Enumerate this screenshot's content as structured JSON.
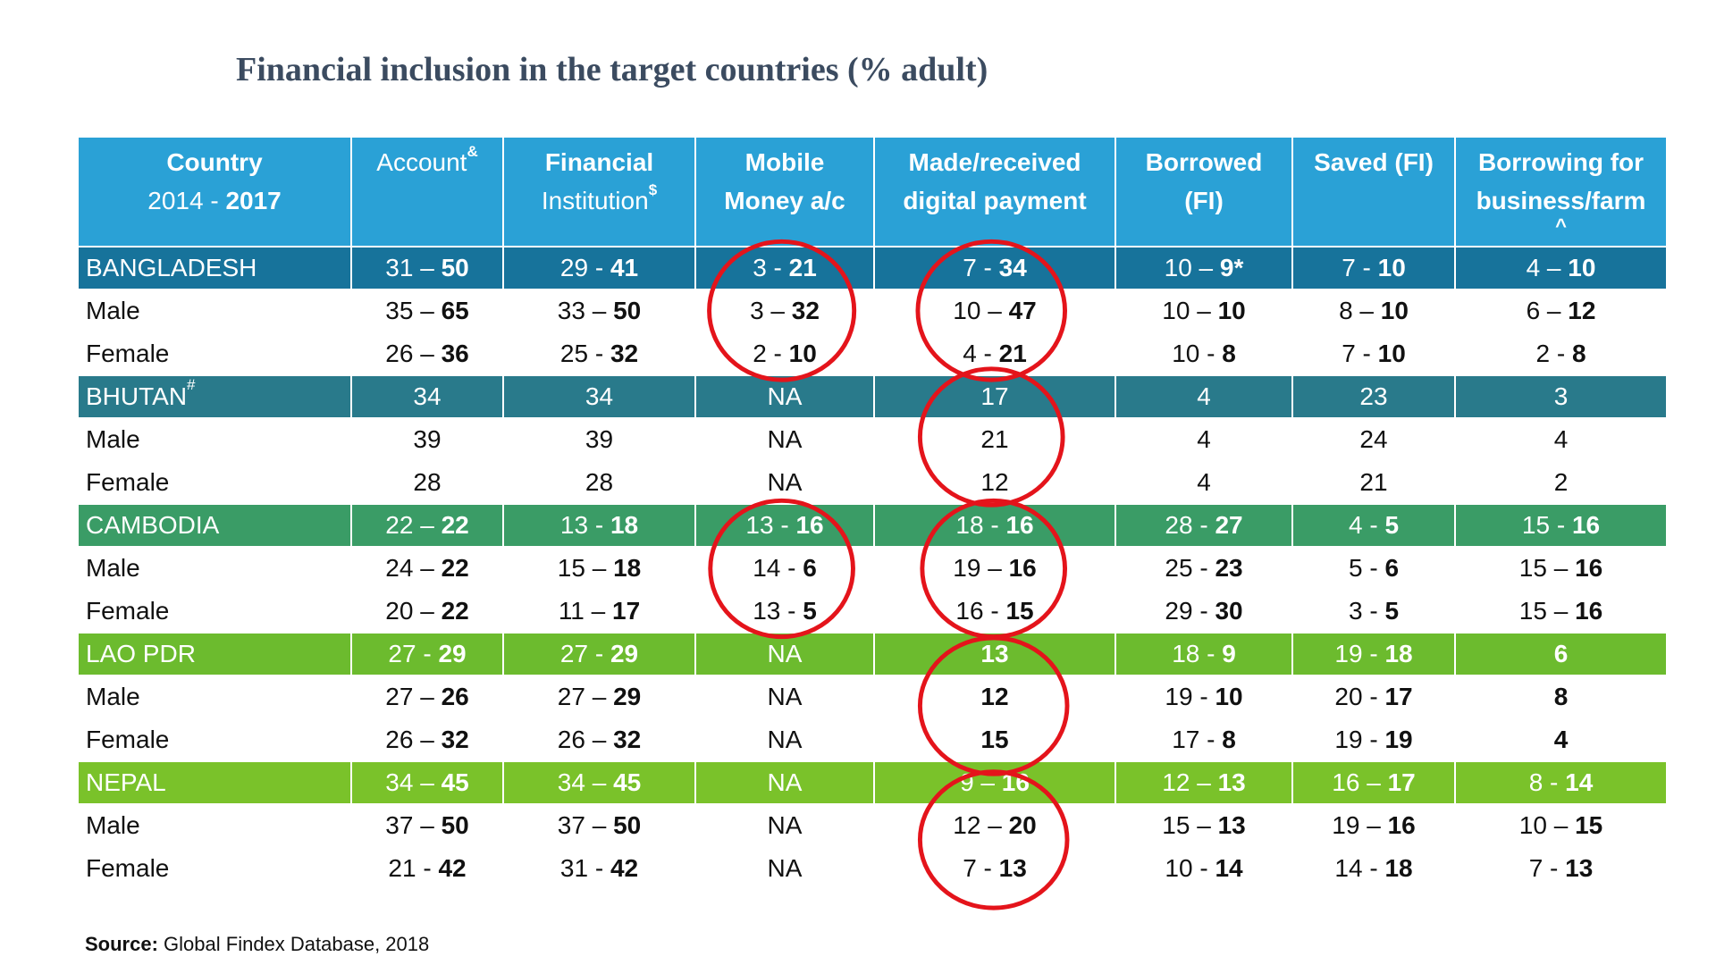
{
  "title": "Financial inclusion in the target countries (% adult)",
  "table": {
    "header": [
      [
        "Country",
        {
          "text": "2014 - ",
          "bold": "2017"
        }
      ],
      [
        {
          "text": "Account",
          "sup": "&"
        }
      ],
      [
        "Financial",
        {
          "text": "Institution",
          "sup": "$"
        }
      ],
      [
        "Mobile",
        "Money a/c"
      ],
      [
        "Made/received",
        "digital payment"
      ],
      [
        "Borrowed",
        "(FI)"
      ],
      [
        "Saved (FI)"
      ],
      [
        "Borrowing for",
        "business/farm",
        "^"
      ]
    ],
    "groups": [
      {
        "name": "BANGLADESH",
        "cells": [
          {
            "text": "31 – ",
            "bold": "50"
          },
          {
            "text": "29 - ",
            "bold": "41"
          },
          {
            "text": "3 - ",
            "bold": "21"
          },
          {
            "text": "7 - ",
            "bold": "34"
          },
          {
            "text": "10 – ",
            "bold": "9*"
          },
          {
            "text": "7 - ",
            "bold": "10"
          },
          {
            "text": "4 – ",
            "bold": "10"
          }
        ],
        "rows": [
          {
            "label": "Male",
            "cells": [
              {
                "text": "35 – ",
                "bold": "65"
              },
              {
                "text": "33 – ",
                "bold": "50"
              },
              {
                "text": "3 – ",
                "bold": "32"
              },
              {
                "text": "10 – ",
                "bold": "47"
              },
              {
                "text": "10 – ",
                "bold": "10"
              },
              {
                "text": "8 – ",
                "bold": "10"
              },
              {
                "text": "6 – ",
                "bold": "12"
              }
            ]
          },
          {
            "label": "Female",
            "cells": [
              {
                "text": "26 – ",
                "bold": "36"
              },
              {
                "text": "25 - ",
                "bold": "32"
              },
              {
                "text": "2 - ",
                "bold": "10"
              },
              {
                "text": "4 - ",
                "bold": "21"
              },
              {
                "text": "10 - ",
                "bold": "8"
              },
              {
                "text": "7 - ",
                "bold": "10"
              },
              {
                "text": "2 - ",
                "bold": "8"
              }
            ]
          }
        ]
      },
      {
        "name": {
          "text": "BHUTAN",
          "sup": "#"
        },
        "cells": [
          "34",
          "34",
          "NA",
          "17",
          "4",
          "23",
          "3"
        ],
        "rows": [
          {
            "label": "Male",
            "cells": [
              "39",
              "39",
              "NA",
              "21",
              "4",
              "24",
              "4"
            ]
          },
          {
            "label": "Female",
            "cells": [
              "28",
              "28",
              "NA",
              "12",
              "4",
              "21",
              "2"
            ]
          }
        ]
      },
      {
        "name": "CAMBODIA",
        "cells": [
          {
            "text": "22 – ",
            "bold": "22"
          },
          {
            "text": "13 - ",
            "bold": "18"
          },
          {
            "text": "13 - ",
            "bold": "16"
          },
          {
            "text": "18 - ",
            "bold": "16"
          },
          {
            "text": "28 - ",
            "bold": "27"
          },
          {
            "text": "4 - ",
            "bold": "5"
          },
          {
            "text": "15 - ",
            "bold": "16"
          }
        ],
        "rows": [
          {
            "label": "Male",
            "cells": [
              {
                "text": "24 – ",
                "bold": "22"
              },
              {
                "text": "15 – ",
                "bold": "18"
              },
              {
                "text": "14 - ",
                "bold": "6"
              },
              {
                "text": "19 – ",
                "bold": "16"
              },
              {
                "text": "25 - ",
                "bold": "23"
              },
              {
                "text": "5 - ",
                "bold": "6"
              },
              {
                "text": "15 – ",
                "bold": "16"
              }
            ]
          },
          {
            "label": "Female",
            "cells": [
              {
                "text": "20 – ",
                "bold": "22"
              },
              {
                "text": "11 – ",
                "bold": "17"
              },
              {
                "text": "13 - ",
                "bold": "5"
              },
              {
                "text": "16 - ",
                "bold": "15"
              },
              {
                "text": "29 - ",
                "bold": "30"
              },
              {
                "text": "3 - ",
                "bold": "5"
              },
              {
                "text": "15 – ",
                "bold": "16"
              }
            ]
          }
        ]
      },
      {
        "name": "LAO PDR",
        "cells": [
          {
            "text": "27 - ",
            "bold": "29"
          },
          {
            "text": "27 - ",
            "bold": "29"
          },
          "NA",
          {
            "bold": "13"
          },
          {
            "text": "18 - ",
            "bold": "9"
          },
          {
            "text": "19 - ",
            "bold": "18"
          },
          {
            "bold": "6"
          }
        ],
        "rows": [
          {
            "label": "Male",
            "cells": [
              {
                "text": "27 – ",
                "bold": "26"
              },
              {
                "text": "27 – ",
                "bold": "29"
              },
              "NA",
              {
                "bold": "12"
              },
              {
                "text": "19 - ",
                "bold": "10"
              },
              {
                "text": "20 - ",
                "bold": "17"
              },
              {
                "bold": "8"
              }
            ]
          },
          {
            "label": "Female",
            "cells": [
              {
                "text": "26 – ",
                "bold": "32"
              },
              {
                "text": "26 – ",
                "bold": "32"
              },
              "NA",
              {
                "bold": "15"
              },
              {
                "text": "17 - ",
                "bold": "8"
              },
              {
                "text": "19 - ",
                "bold": "19"
              },
              {
                "bold": "4"
              }
            ]
          }
        ]
      },
      {
        "name": "NEPAL",
        "cells": [
          {
            "text": "34 – ",
            "bold": "45"
          },
          {
            "text": "34 – ",
            "bold": "45"
          },
          "NA",
          {
            "text": "9 – ",
            "bold": "16"
          },
          {
            "text": "12 – ",
            "bold": "13"
          },
          {
            "text": "16 – ",
            "bold": "17"
          },
          {
            "text": "8 - ",
            "bold": "14"
          }
        ],
        "rows": [
          {
            "label": "Male",
            "cells": [
              {
                "text": "37 – ",
                "bold": "50"
              },
              {
                "text": "37 – ",
                "bold": "50"
              },
              "NA",
              {
                "text": "12 – ",
                "bold": "20"
              },
              {
                "text": "15 – ",
                "bold": "13"
              },
              {
                "text": "19 – ",
                "bold": "16"
              },
              {
                "text": "10 – ",
                "bold": "15"
              }
            ]
          },
          {
            "label": "Female",
            "cells": [
              {
                "text": "21 - ",
                "bold": "42"
              },
              {
                "text": "31 - ",
                "bold": "42"
              },
              "NA",
              {
                "text": "7 - ",
                "bold": "13"
              },
              {
                "text": "10 - ",
                "bold": "14"
              },
              {
                "text": "14 - ",
                "bold": "18"
              },
              {
                "text": "7 - ",
                "bold": "13"
              }
            ]
          }
        ]
      }
    ]
  },
  "source": {
    "label": "Source:",
    "text": "Global Findex Database, 2018"
  }
}
